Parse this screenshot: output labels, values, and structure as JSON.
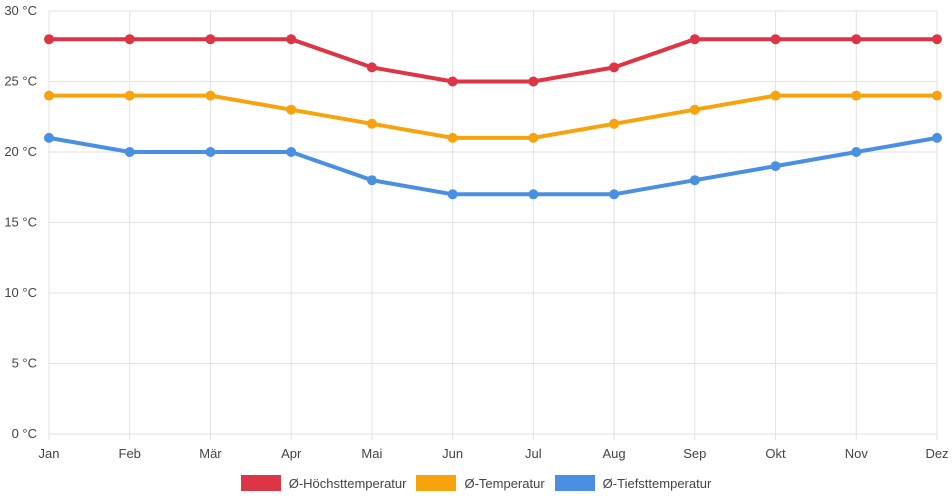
{
  "chart_data": {
    "type": "line",
    "title": "",
    "xlabel": "",
    "ylabel": "",
    "y_unit": "°C",
    "ylim": [
      0,
      30
    ],
    "y_ticks": [
      0,
      5,
      10,
      15,
      20,
      25,
      30
    ],
    "y_tick_labels": [
      "0 °C",
      "5 °C",
      "10 °C",
      "15 °C",
      "20 °C",
      "25 °C",
      "30 °C"
    ],
    "grid": true,
    "legend_position": "bottom",
    "categories": [
      "Jan",
      "Feb",
      "Mär",
      "Apr",
      "Mai",
      "Jun",
      "Jul",
      "Aug",
      "Sep",
      "Okt",
      "Nov",
      "Dez"
    ],
    "series": [
      {
        "name": "Ø-Höchsttemperatur",
        "color": "#dc3545",
        "values": [
          28,
          28,
          28,
          28,
          26,
          25,
          25,
          26,
          28,
          28,
          28,
          28
        ]
      },
      {
        "name": "Ø-Temperatur",
        "color": "#f7a30c",
        "values": [
          24,
          24,
          24,
          23,
          22,
          21,
          21,
          22,
          23,
          24,
          24,
          24
        ]
      },
      {
        "name": "Ø-Tiefsttemperatur",
        "color": "#4a90e2",
        "values": [
          21,
          20,
          20,
          20,
          18,
          17,
          17,
          17,
          18,
          19,
          20,
          21
        ]
      }
    ]
  }
}
